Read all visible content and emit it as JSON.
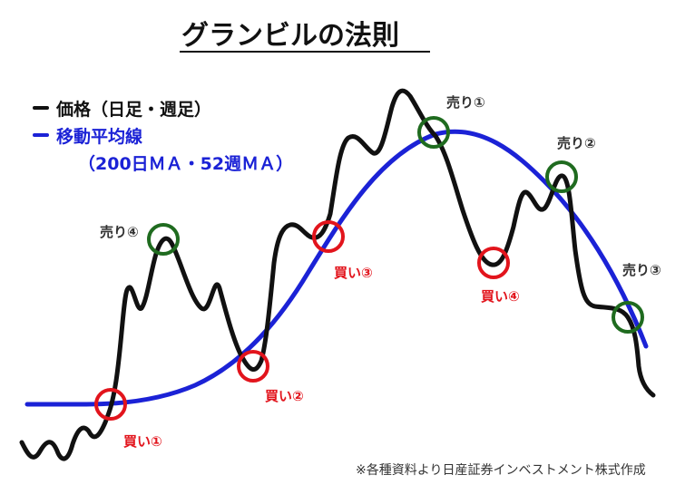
{
  "title": "グランビルの法則",
  "legend": {
    "price": {
      "label": "価格（日足・週足）",
      "color": "#111111"
    },
    "ma": {
      "label": "移動平均線",
      "sub": "（200日ＭＡ・52週ＭＡ）",
      "color": "#1b22d6"
    }
  },
  "signals": {
    "buy1": "買い①",
    "buy2": "買い②",
    "buy3": "買い③",
    "buy4": "買い④",
    "sell1": "売り①",
    "sell2": "売り②",
    "sell3": "売り③",
    "sell4": "売り④"
  },
  "colors": {
    "buy": "#e2141c",
    "sell": "#1f6b1f"
  },
  "note": "※各種資料より日産証券インベストメント株式作成"
}
